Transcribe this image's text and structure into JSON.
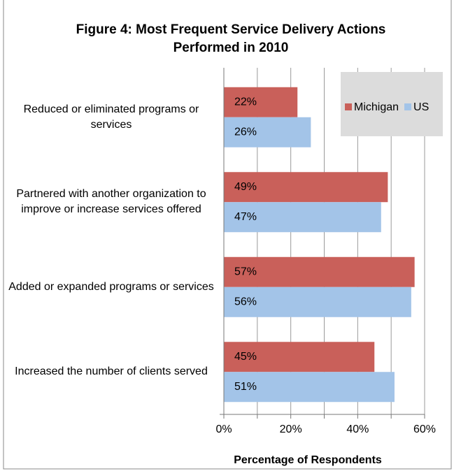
{
  "chart_data": {
    "type": "bar",
    "orientation": "horizontal",
    "title": "Figure 4: Most Frequent Service Delivery Actions Performed in 2010",
    "xlabel": "Percentage of Respondents",
    "categories": [
      "Reduced or eliminated programs or services",
      "Partnered with another organization to improve or increase services offered",
      "Added or expanded programs or services",
      "Increased the number of clients served"
    ],
    "series": [
      {
        "name": "Michigan",
        "color": "#c9605a",
        "values": [
          22,
          49,
          57,
          45
        ],
        "value_labels": [
          "22%",
          "49%",
          "57%",
          "45%"
        ]
      },
      {
        "name": "US",
        "color": "#a3c4e8",
        "values": [
          26,
          47,
          56,
          51
        ],
        "value_labels": [
          "26%",
          "47%",
          "56%",
          "51%"
        ]
      }
    ],
    "xlim": [
      0,
      60
    ],
    "xticks": [
      {
        "value": 0,
        "label": "0%"
      },
      {
        "value": 20,
        "label": "20%"
      },
      {
        "value": 40,
        "label": "40%"
      },
      {
        "value": 60,
        "label": "60%"
      }
    ],
    "grid_ticks": [
      0,
      10,
      20,
      30,
      40,
      50,
      60
    ],
    "grid": true,
    "legend": "top-right"
  }
}
